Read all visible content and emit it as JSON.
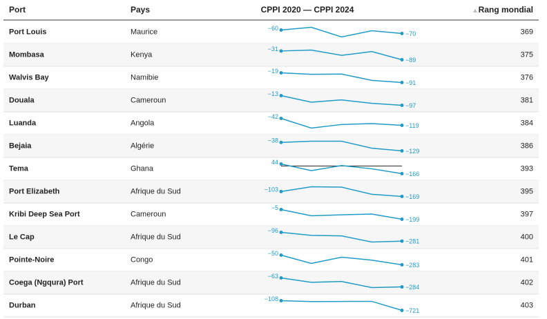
{
  "table": {
    "headers": [
      "Port",
      "Pays",
      "CPPI 2020 — CPPI 2024",
      "Rang mondial"
    ],
    "rows": [
      {
        "port": "Port Louis",
        "country": "Maurice",
        "cppi": [
          -60,
          -52,
          -80,
          -62,
          -70
        ],
        "start_label": "−60",
        "end_label": "−70",
        "rank": 369
      },
      {
        "port": "Mombasa",
        "country": "Kenya",
        "cppi": [
          -31,
          -25,
          -60,
          -35,
          -89
        ],
        "start_label": "−31",
        "end_label": "−89",
        "rank": 375
      },
      {
        "port": "Walvis Bay",
        "country": "Namibie",
        "cppi": [
          -19,
          -30,
          -28,
          -75,
          -91
        ],
        "start_label": "−19",
        "end_label": "−91",
        "rank": 376
      },
      {
        "port": "Douala",
        "country": "Cameroun",
        "cppi": [
          -13,
          -70,
          -50,
          -80,
          -97
        ],
        "start_label": "−13",
        "end_label": "−97",
        "rank": 381
      },
      {
        "port": "Luanda",
        "country": "Angola",
        "cppi": [
          -42,
          -150,
          -110,
          -100,
          -119
        ],
        "start_label": "−42",
        "end_label": "−119",
        "rank": 384
      },
      {
        "port": "Bejaia",
        "country": "Algérie",
        "cppi": [
          -38,
          -25,
          -25,
          -100,
          -129
        ],
        "start_label": "−38",
        "end_label": "−129",
        "rank": 386
      },
      {
        "port": "Tema",
        "country": "Ghana",
        "cppi": [
          44,
          -100,
          10,
          -60,
          -166
        ],
        "start_label": "44",
        "end_label": "−166",
        "rank": 393
      },
      {
        "port": "Port Elizabeth",
        "country": "Afrique du Sud",
        "cppi": [
          -103,
          -40,
          -45,
          -140,
          -169
        ],
        "start_label": "−103",
        "end_label": "−169",
        "rank": 395
      },
      {
        "port": "Kribi Deep Sea Port",
        "country": "Cameroun",
        "cppi": [
          -5,
          -130,
          -110,
          -95,
          -199
        ],
        "start_label": "−5",
        "end_label": "−199",
        "rank": 397
      },
      {
        "port": "Le Cap",
        "country": "Afrique du Sud",
        "cppi": [
          -96,
          -160,
          -170,
          -300,
          -281
        ],
        "start_label": "−96",
        "end_label": "−281",
        "rank": 400
      },
      {
        "port": "Pointe-Noire",
        "country": "Congo",
        "cppi": [
          -50,
          -250,
          -100,
          -170,
          -283
        ],
        "start_label": "−50",
        "end_label": "−283",
        "rank": 401
      },
      {
        "port": "Coega (Ngqura) Port",
        "country": "Afrique du Sud",
        "cppi": [
          -63,
          -170,
          -150,
          -300,
          -284
        ],
        "start_label": "−63",
        "end_label": "−284",
        "rank": 402
      },
      {
        "port": "Durban",
        "country": "Afrique du Sud",
        "cppi": [
          -108,
          -160,
          -155,
          -150,
          -721
        ],
        "start_label": "−108",
        "end_label": "−721",
        "rank": 403
      }
    ]
  }
}
